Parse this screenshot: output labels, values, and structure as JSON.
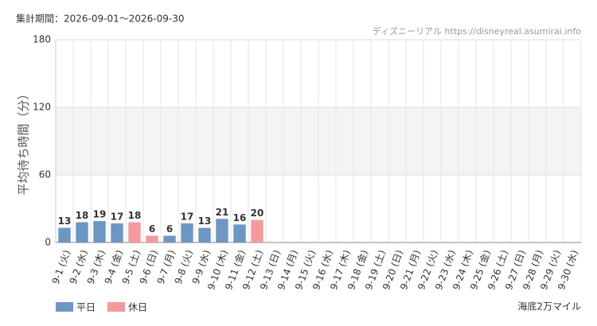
{
  "chart_data": {
    "type": "bar",
    "title": "集計期間：2026-09-01～2026-09-30",
    "source": "ディズニーリアル https://disneyreal.asumirai.info",
    "attraction": "海底2万マイル",
    "y_label": "平均待ち時間（分）",
    "categories": [
      "9-1 (火)",
      "9-2 (水)",
      "9-3 (木)",
      "9-4 (金)",
      "9-5 (土)",
      "9-6 (日)",
      "9-7 (月)",
      "9-8 (火)",
      "9-9 (水)",
      "9-10 (木)",
      "9-11 (金)",
      "9-12 (土)",
      "9-13 (日)",
      "9-14 (月)",
      "9-15 (火)",
      "9-16 (水)",
      "9-17 (木)",
      "9-18 (金)",
      "9-19 (土)",
      "9-20 (日)",
      "9-21 (月)",
      "9-22 (火)",
      "9-23 (水)",
      "9-24 (木)",
      "9-25 (金)",
      "9-26 (土)",
      "9-27 (日)",
      "9-28 (月)",
      "9-29 (火)",
      "9-30 (水)"
    ],
    "category_colors": [
      "#333",
      "#333",
      "#333",
      "#333",
      "#f08080",
      "#f08080",
      "#333",
      "#333",
      "#333",
      "#333",
      "#333",
      "#f08080",
      "#f08080",
      "#333",
      "#333",
      "#333",
      "#333",
      "#333",
      "#f08080",
      "#f08080",
      "#f08080",
      "#f08080",
      "#f08080",
      "#333",
      "#333",
      "#f08080",
      "#f08080",
      "#333",
      "#333",
      "#333"
    ],
    "series": [
      {
        "name": "平日",
        "color": "#6c97c5",
        "values": [
          13,
          18,
          19,
          17,
          null,
          null,
          6,
          17,
          13,
          21,
          16,
          null,
          null,
          null,
          null,
          null,
          null,
          null,
          null,
          null,
          null,
          null,
          null,
          null,
          null,
          null,
          null,
          null,
          null,
          null
        ]
      },
      {
        "name": "休日",
        "color": "#f5999b",
        "values": [
          null,
          null,
          null,
          null,
          18,
          6,
          null,
          null,
          null,
          null,
          null,
          20,
          null,
          null,
          null,
          null,
          null,
          null,
          null,
          null,
          null,
          null,
          null,
          null,
          null,
          null,
          null,
          null,
          null,
          null
        ]
      }
    ],
    "ylim": [
      0,
      180
    ],
    "yticks": [
      0,
      60,
      120,
      180
    ],
    "band": [
      60,
      120
    ],
    "grid": true
  }
}
